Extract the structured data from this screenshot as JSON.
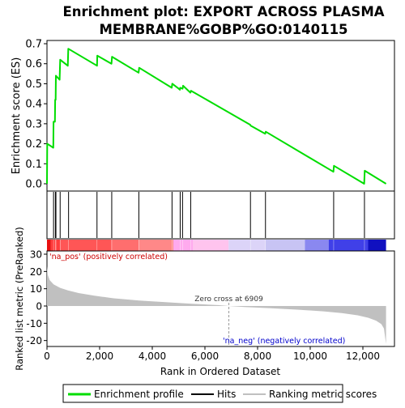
{
  "title_line1": "Enrichment plot: EXPORT ACROSS PLASMA",
  "title_line2": "MEMBRANE%GOBP%GO:0140115",
  "colors": {
    "enrichment_line": "#00dd00",
    "hits": "#000000",
    "metric_fill": "#c0c0c0",
    "pos_label": "#cc0000",
    "neg_label": "#0000cc"
  },
  "chart_data": [
    {
      "type": "line",
      "name": "enrichment-score",
      "ylabel": "Enrichment score (ES)",
      "ylim": [
        0,
        0.7
      ],
      "yticks": [
        0.0,
        0.1,
        0.2,
        0.3,
        0.4,
        0.5,
        0.6,
        0.7
      ],
      "ytick_labels": [
        "0.0",
        "0.1",
        "0.2",
        "0.3",
        "0.4",
        "0.5",
        "0.6",
        "0.7"
      ],
      "xlim": [
        0,
        13200
      ],
      "x": [
        0,
        10,
        240,
        250,
        300,
        310,
        330,
        340,
        480,
        500,
        790,
        810,
        1900,
        1910,
        2450,
        2470,
        3480,
        3500,
        4740,
        4760,
        4960,
        5050,
        5060,
        5150,
        5170,
        5450,
        5470,
        7720,
        7740,
        8290,
        8310,
        10880,
        10900,
        12050,
        12070,
        12880
      ],
      "y": [
        0.0,
        0.2,
        0.18,
        0.31,
        0.31,
        0.42,
        0.42,
        0.54,
        0.52,
        0.62,
        0.59,
        0.675,
        0.59,
        0.64,
        0.6,
        0.635,
        0.555,
        0.58,
        0.48,
        0.5,
        0.48,
        0.47,
        0.48,
        0.475,
        0.49,
        0.455,
        0.465,
        0.295,
        0.29,
        0.25,
        0.26,
        0.06,
        0.09,
        0.0,
        0.065,
        0.0
      ],
      "grid": false
    },
    {
      "type": "area",
      "name": "ranked-metric",
      "xlabel": "Rank in Ordered Dataset",
      "ylabel": "Ranked list metric (PreRanked)",
      "xlim": [
        0,
        13200
      ],
      "ylim": [
        -24,
        30
      ],
      "xticks": [
        0,
        2000,
        4000,
        6000,
        8000,
        10000,
        12000
      ],
      "xtick_labels": [
        "0",
        "2,000",
        "4,000",
        "6,000",
        "8,000",
        "10,000",
        "12,000"
      ],
      "yticks": [
        -20,
        -10,
        0,
        10,
        20,
        30
      ],
      "ytick_labels": [
        "-20",
        "-10",
        "0",
        "10",
        "20",
        "30"
      ],
      "x": [
        0,
        30,
        100,
        250,
        500,
        800,
        1200,
        1800,
        2500,
        3500,
        4500,
        5500,
        6500,
        6909,
        7500,
        8500,
        9500,
        10500,
        11200,
        11800,
        12200,
        12500,
        12700,
        12800,
        12880
      ],
      "y": [
        23,
        18,
        15,
        12.5,
        10.5,
        9,
        7.5,
        6,
        4.5,
        3.2,
        2.2,
        1.3,
        0.5,
        0,
        -0.6,
        -1.3,
        -2.1,
        -3.1,
        -4.1,
        -5.4,
        -6.8,
        -8.5,
        -10.5,
        -13,
        -22
      ],
      "annotations": {
        "zero_cross": "Zero cross at 6909",
        "pos_label": "'na_pos' (positively correlated)",
        "neg_label": "'na_neg' (negatively correlated)"
      }
    },
    {
      "type": "hits",
      "name": "gene-hits",
      "positions": [
        250,
        320,
        340,
        500,
        820,
        1900,
        2460,
        3490,
        4750,
        5060,
        5150,
        5460,
        7730,
        8300,
        10890,
        12060
      ]
    }
  ],
  "colorbar": {
    "segments": [
      {
        "from": 0,
        "to": 150,
        "color": "#e81010"
      },
      {
        "from": 150,
        "to": 500,
        "color": "#ff3c3c"
      },
      {
        "from": 500,
        "to": 2450,
        "color": "#ff5656"
      },
      {
        "from": 2450,
        "to": 3500,
        "color": "#ff6e6e"
      },
      {
        "from": 3500,
        "to": 4800,
        "color": "#ff8888"
      },
      {
        "from": 4800,
        "to": 5550,
        "color": "#ffaaee"
      },
      {
        "from": 5550,
        "to": 6900,
        "color": "#ffc4ee"
      },
      {
        "from": 6900,
        "to": 8300,
        "color": "#dcd4f8"
      },
      {
        "from": 8300,
        "to": 9800,
        "color": "#c8c4f4"
      },
      {
        "from": 9800,
        "to": 10700,
        "color": "#8a88f0"
      },
      {
        "from": 10700,
        "to": 12200,
        "color": "#4040e8"
      },
      {
        "from": 12200,
        "to": 12880,
        "color": "#1010c0"
      }
    ]
  },
  "legend": {
    "items": [
      {
        "label": "Enrichment profile",
        "swatch_color": "#00dd00"
      },
      {
        "label": "Hits",
        "swatch_color": "#000000"
      },
      {
        "label": "Ranking metric scores",
        "swatch_color": "#c0c0c0"
      }
    ]
  }
}
